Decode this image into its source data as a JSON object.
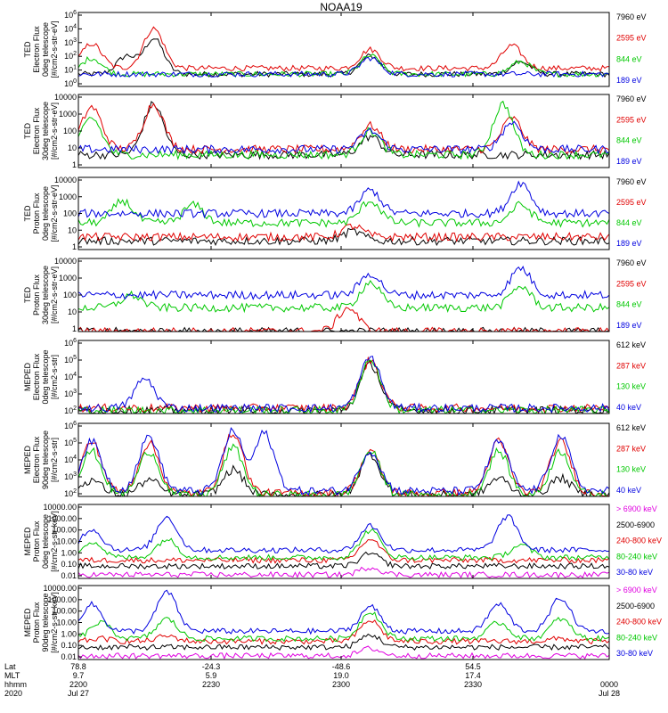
{
  "title": "NOAA19",
  "panel_ylabels": [
    [
      "TED",
      "Electron Flux",
      "0deg telescope",
      "[#/cm2-s-str-eV]"
    ],
    [
      "TED",
      "Electron Flux",
      "30deg telescope",
      "[#/cm2-s-str-eV]"
    ],
    [
      "TED",
      "Proton Flux",
      "0deg telescope",
      "[#/cm2-s-str-eV]"
    ],
    [
      "TED",
      "Proton Flux",
      "30deg telescope",
      "[#/cm2-s-str-eV]"
    ],
    [
      "MEPED",
      "Electron Flux",
      "0deg telescope",
      "[#/cm2-s-str]"
    ],
    [
      "MEPED",
      "Electron Flux",
      "90deg telescope",
      "[#/cm2-s-str]"
    ],
    [
      "MEPED",
      "Proton Flux",
      "0deg telescope",
      "[#/cm2-s-str-keV]"
    ],
    [
      "MEPED",
      "Proton Flux",
      "90deg telescope",
      "[#/cm2-s-str-keV]"
    ]
  ],
  "panel_yticks": [
    [
      "10^6",
      "10^4",
      "10^3",
      "10^2",
      "10^1",
      "10^0"
    ],
    [
      "10000",
      "1000",
      "100",
      "10",
      "1"
    ],
    [
      "10000",
      "1000",
      "100",
      "10",
      "1"
    ],
    [
      "10000",
      "1000",
      "100",
      "10",
      "1"
    ],
    [
      "10^6",
      "10^5",
      "10^4",
      "10^3",
      "10^2"
    ],
    [
      "10^6",
      "10^5",
      "10^4",
      "10^3",
      "10^2"
    ],
    [
      "10000.00",
      "1000.00",
      "100.00",
      "10.00",
      "1.00",
      "0.10",
      "0.01"
    ],
    [
      "10000.00",
      "1000.00",
      "100.00",
      "10.00",
      "1.00",
      "0.10",
      "0.01"
    ]
  ],
  "panel_legends": [
    [
      {
        "label": "7960 eV",
        "color": "#000000"
      },
      {
        "label": "2595 eV",
        "color": "#e00000"
      },
      {
        "label": "844 eV",
        "color": "#00c800"
      },
      {
        "label": "189 eV",
        "color": "#0000e0"
      }
    ],
    [
      {
        "label": "7960 eV",
        "color": "#000000"
      },
      {
        "label": "2595 eV",
        "color": "#e00000"
      },
      {
        "label": "844 eV",
        "color": "#00c800"
      },
      {
        "label": "189 eV",
        "color": "#0000e0"
      }
    ],
    [
      {
        "label": "7960 eV",
        "color": "#000000"
      },
      {
        "label": "2595 eV",
        "color": "#e00000"
      },
      {
        "label": "844 eV",
        "color": "#00c800"
      },
      {
        "label": "189 eV",
        "color": "#0000e0"
      }
    ],
    [
      {
        "label": "7960 eV",
        "color": "#000000"
      },
      {
        "label": "2595 eV",
        "color": "#e00000"
      },
      {
        "label": "844 eV",
        "color": "#00c800"
      },
      {
        "label": "189 eV",
        "color": "#0000e0"
      }
    ],
    [
      {
        "label": "612 keV",
        "color": "#000000"
      },
      {
        "label": "287 keV",
        "color": "#e00000"
      },
      {
        "label": "130 keV",
        "color": "#00c800"
      },
      {
        "label": "40 keV",
        "color": "#0000e0"
      }
    ],
    [
      {
        "label": "612 keV",
        "color": "#000000"
      },
      {
        "label": "287 keV",
        "color": "#e00000"
      },
      {
        "label": "130 keV",
        "color": "#00c800"
      },
      {
        "label": "40 keV",
        "color": "#0000e0"
      }
    ],
    [
      {
        "label": "> 6900 keV",
        "color": "#e000e0"
      },
      {
        "label": "2500-6900",
        "color": "#000000"
      },
      {
        "label": "240-800 keV",
        "color": "#e00000"
      },
      {
        "label": "80-240 keV",
        "color": "#00c800"
      },
      {
        "label": "30-80 keV",
        "color": "#0000e0"
      }
    ],
    [
      {
        "label": "> 6900 keV",
        "color": "#e000e0"
      },
      {
        "label": "2500-6900",
        "color": "#000000"
      },
      {
        "label": "240-800 keV",
        "color": "#e00000"
      },
      {
        "label": "80-240 keV",
        "color": "#00c800"
      },
      {
        "label": "30-80 keV",
        "color": "#0000e0"
      }
    ]
  ],
  "xaxis": {
    "row_labels": [
      "Lat",
      "MLT",
      "hhmm",
      "2020"
    ],
    "ticks": [
      {
        "lat": "78.8",
        "mlt": "9.7",
        "hhmm": "2200",
        "date": "Jul 27"
      },
      {
        "lat": "-24.3",
        "mlt": "5.9",
        "hhmm": "2230",
        "date": ""
      },
      {
        "lat": "-48.6",
        "mlt": "19.0",
        "hhmm": "2300",
        "date": ""
      },
      {
        "lat": "54.5",
        "mlt": "17.4",
        "hhmm": "2330",
        "date": ""
      },
      {
        "lat": "",
        "mlt": "",
        "hhmm": "0000",
        "date": "Jul 28"
      }
    ]
  },
  "chart_data": [
    {
      "type": "line",
      "panel": 1,
      "title": "NOAA19",
      "ylabel": "TED Electron Flux 0deg telescope [#/cm2-s-str-eV]",
      "yscale": "log",
      "ylim": [
        1,
        1000000
      ],
      "x_ticks": [
        "2200",
        "2230",
        "2300",
        "2330",
        "0000"
      ],
      "series": [
        {
          "name": "7960 eV",
          "color": "#000000",
          "peaks": [
            {
              "x": "2211",
              "y": 300
            },
            {
              "x": "2217",
              "y": 8000
            },
            {
              "x": "2306",
              "y": 300
            },
            {
              "x": "2340",
              "y": 100
            }
          ],
          "baseline": 10
        },
        {
          "name": "2595 eV",
          "color": "#e00000",
          "peaks": [
            {
              "x": "2203",
              "y": 3000
            },
            {
              "x": "2217",
              "y": 50000
            },
            {
              "x": "2306",
              "y": 1000
            },
            {
              "x": "2338",
              "y": 2000
            }
          ],
          "baseline": 30
        },
        {
          "name": "844 eV",
          "color": "#00c800",
          "peaks": [
            {
              "x": "2203",
              "y": 200
            },
            {
              "x": "2306",
              "y": 300
            },
            {
              "x": "2340",
              "y": 100
            }
          ],
          "baseline": 10
        },
        {
          "name": "189 eV",
          "color": "#0000e0",
          "peaks": [
            {
              "x": "2306",
              "y": 200
            }
          ],
          "baseline": 10
        }
      ]
    },
    {
      "type": "line",
      "panel": 2,
      "ylabel": "TED Electron Flux 30deg telescope [#/cm2-s-str-eV]",
      "yscale": "log",
      "ylim": [
        1,
        10000
      ],
      "series": [
        {
          "name": "7960 eV",
          "color": "#000000",
          "peaks": [
            {
              "x": "2217",
              "y": 3000
            },
            {
              "x": "2306",
              "y": 50
            }
          ],
          "baseline": 5
        },
        {
          "name": "2595 eV",
          "color": "#e00000",
          "peaks": [
            {
              "x": "2203",
              "y": 2000
            },
            {
              "x": "2217",
              "y": 3000
            },
            {
              "x": "2306",
              "y": 200
            },
            {
              "x": "2338",
              "y": 500
            }
          ],
          "baseline": 10
        },
        {
          "name": "844 eV",
          "color": "#00c800",
          "peaks": [
            {
              "x": "2203",
              "y": 500
            },
            {
              "x": "2306",
              "y": 100
            },
            {
              "x": "2336",
              "y": 3000
            }
          ],
          "baseline": 5
        },
        {
          "name": "189 eV",
          "color": "#0000e0",
          "peaks": [
            {
              "x": "2306",
              "y": 100
            },
            {
              "x": "2338",
              "y": 300
            }
          ],
          "baseline": 10
        }
      ]
    },
    {
      "type": "line",
      "panel": 3,
      "ylabel": "TED Proton Flux 0deg telescope [#/cm2-s-str-eV]",
      "yscale": "log",
      "ylim": [
        1,
        10000
      ],
      "series": [
        {
          "name": "7960 eV",
          "color": "#000000",
          "peaks": [
            {
              "x": "2302",
              "y": 10
            }
          ],
          "baseline": 3
        },
        {
          "name": "2595 eV",
          "color": "#e00000",
          "peaks": [
            {
              "x": "2302",
              "y": 20
            }
          ],
          "baseline": 5
        },
        {
          "name": "844 eV",
          "color": "#00c800",
          "peaks": [
            {
              "x": "2210",
              "y": 500
            },
            {
              "x": "2226",
              "y": 300
            },
            {
              "x": "2306",
              "y": 500
            },
            {
              "x": "2340",
              "y": 300
            }
          ],
          "baseline": 30
        },
        {
          "name": "189 eV",
          "color": "#0000e0",
          "peaks": [
            {
              "x": "2306",
              "y": 2000
            },
            {
              "x": "2340",
              "y": 5000
            }
          ],
          "baseline": 100
        }
      ]
    },
    {
      "type": "line",
      "panel": 4,
      "ylabel": "TED Proton Flux 30deg telescope [#/cm2-s-str-eV]",
      "yscale": "log",
      "ylim": [
        1,
        10000
      ],
      "series": [
        {
          "name": "7960 eV",
          "color": "#000000",
          "peaks": [],
          "baseline": 1
        },
        {
          "name": "2595 eV",
          "color": "#e00000",
          "peaks": [
            {
              "x": "2301",
              "y": 20
            }
          ],
          "baseline": 1
        },
        {
          "name": "844 eV",
          "color": "#00c800",
          "peaks": [
            {
              "x": "2212",
              "y": 100
            },
            {
              "x": "2306",
              "y": 500
            },
            {
              "x": "2340",
              "y": 300
            }
          ],
          "baseline": 20
        },
        {
          "name": "189 eV",
          "color": "#0000e0",
          "peaks": [
            {
              "x": "2306",
              "y": 1500
            },
            {
              "x": "2340",
              "y": 3000
            }
          ],
          "baseline": 100
        }
      ]
    },
    {
      "type": "line",
      "panel": 5,
      "ylabel": "MEPED Electron Flux 0deg telescope [#/cm2-s-str]",
      "yscale": "log",
      "ylim": [
        100,
        1000000
      ],
      "series": [
        {
          "name": "612 keV",
          "color": "#000000",
          "peaks": [
            {
              "x": "2306",
              "y": 50000
            }
          ],
          "baseline": 150
        },
        {
          "name": "287 keV",
          "color": "#e00000",
          "peaks": [
            {
              "x": "2306",
              "y": 80000
            }
          ],
          "baseline": 200
        },
        {
          "name": "130 keV",
          "color": "#00c800",
          "peaks": [
            {
              "x": "2306",
              "y": 90000
            }
          ],
          "baseline": 150
        },
        {
          "name": "40 keV",
          "color": "#0000e0",
          "peaks": [
            {
              "x": "2215",
              "y": 8000
            },
            {
              "x": "2306",
              "y": 120000
            }
          ],
          "baseline": 200
        }
      ]
    },
    {
      "type": "line",
      "panel": 6,
      "ylabel": "MEPED Electron Flux 90deg telescope [#/cm2-s-str]",
      "yscale": "log",
      "ylim": [
        100,
        1000000
      ],
      "series": [
        {
          "name": "612 keV",
          "color": "#000000",
          "peaks": [
            {
              "x": "2203",
              "y": 800
            },
            {
              "x": "2216",
              "y": 800
            },
            {
              "x": "2235",
              "y": 3000
            },
            {
              "x": "2306",
              "y": 20000
            },
            {
              "x": "2335",
              "y": 1000
            },
            {
              "x": "2349",
              "y": 1000
            }
          ],
          "baseline": 120
        },
        {
          "name": "287 keV",
          "color": "#e00000",
          "peaks": [
            {
              "x": "2203",
              "y": 100000
            },
            {
              "x": "2216",
              "y": 80000
            },
            {
              "x": "2235",
              "y": 300000
            },
            {
              "x": "2306",
              "y": 30000
            },
            {
              "x": "2335",
              "y": 100000
            },
            {
              "x": "2349",
              "y": 100000
            }
          ],
          "baseline": 150
        },
        {
          "name": "130 keV",
          "color": "#00c800",
          "peaks": [
            {
              "x": "2203",
              "y": 30000
            },
            {
              "x": "2216",
              "y": 30000
            },
            {
              "x": "2235",
              "y": 50000
            },
            {
              "x": "2306",
              "y": 30000
            },
            {
              "x": "2335",
              "y": 30000
            },
            {
              "x": "2349",
              "y": 30000
            }
          ],
          "baseline": 120
        },
        {
          "name": "40 keV",
          "color": "#0000e0",
          "peaks": [
            {
              "x": "2203",
              "y": 100000
            },
            {
              "x": "2216",
              "y": 200000
            },
            {
              "x": "2235",
              "y": 400000
            },
            {
              "x": "2242",
              "y": 300000
            },
            {
              "x": "2306",
              "y": 30000
            },
            {
              "x": "2335",
              "y": 100000
            },
            {
              "x": "2349",
              "y": 200000
            }
          ],
          "baseline": 200
        }
      ]
    },
    {
      "type": "line",
      "panel": 7,
      "ylabel": "MEPED Proton Flux 0deg telescope [#/cm2-s-str-keV]",
      "yscale": "log",
      "ylim": [
        0.01,
        10000
      ],
      "series": [
        {
          "name": "> 6900 keV",
          "color": "#e000e0",
          "peaks": [
            {
              "x": "2306",
              "y": 0.08
            }
          ],
          "baseline": 0.02
        },
        {
          "name": "2500-6900",
          "color": "#000000",
          "peaks": [
            {
              "x": "2306",
              "y": 1
            }
          ],
          "baseline": 0.1
        },
        {
          "name": "240-800 keV",
          "color": "#e00000",
          "peaks": [
            {
              "x": "2306",
              "y": 15
            }
          ],
          "baseline": 0.3
        },
        {
          "name": "80-240 keV",
          "color": "#00c800",
          "peaks": [
            {
              "x": "2203",
              "y": 10
            },
            {
              "x": "2220",
              "y": 15
            },
            {
              "x": "2306",
              "y": 80
            },
            {
              "x": "2340",
              "y": 5
            }
          ],
          "baseline": 0.5
        },
        {
          "name": "30-80 keV",
          "color": "#0000e0",
          "peaks": [
            {
              "x": "2203",
              "y": 100
            },
            {
              "x": "2220",
              "y": 1000
            },
            {
              "x": "2306",
              "y": 200
            },
            {
              "x": "2337",
              "y": 1000
            }
          ],
          "baseline": 2
        }
      ]
    },
    {
      "type": "line",
      "panel": 8,
      "ylabel": "MEPED Proton Flux 90deg telescope [#/cm2-s-str-keV]",
      "yscale": "log",
      "ylim": [
        0.01,
        10000
      ],
      "series": [
        {
          "name": "> 6900 keV",
          "color": "#e000e0",
          "peaks": [
            {
              "x": "2306",
              "y": 0.08
            }
          ],
          "baseline": 0.02
        },
        {
          "name": "2500-6900",
          "color": "#000000",
          "peaks": [
            {
              "x": "2306",
              "y": 1
            }
          ],
          "baseline": 0.1
        },
        {
          "name": "240-800 keV",
          "color": "#e00000",
          "peaks": [
            {
              "x": "2205",
              "y": 0.5
            },
            {
              "x": "2220",
              "y": 0.8
            },
            {
              "x": "2306",
              "y": 15
            },
            {
              "x": "2349",
              "y": 0.5
            }
          ],
          "baseline": 0.3
        },
        {
          "name": "80-240 keV",
          "color": "#00c800",
          "peaks": [
            {
              "x": "2205",
              "y": 10
            },
            {
              "x": "2220",
              "y": 20
            },
            {
              "x": "2306",
              "y": 80
            },
            {
              "x": "2335",
              "y": 10
            },
            {
              "x": "2349",
              "y": 20
            }
          ],
          "baseline": 0.5
        },
        {
          "name": "30-80 keV",
          "color": "#0000e0",
          "peaks": [
            {
              "x": "2203",
              "y": 300
            },
            {
              "x": "2220",
              "y": 3000
            },
            {
              "x": "2306",
              "y": 200
            },
            {
              "x": "2335",
              "y": 300
            },
            {
              "x": "2349",
              "y": 1000
            }
          ],
          "baseline": 2
        }
      ]
    }
  ]
}
